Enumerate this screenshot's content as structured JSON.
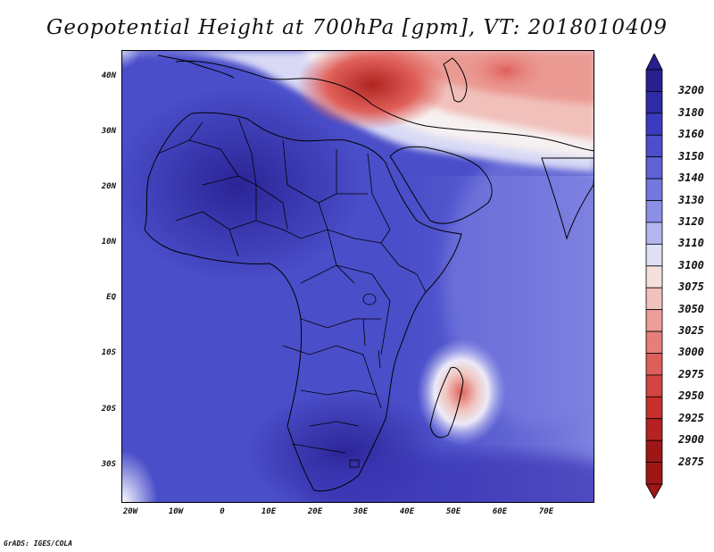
{
  "title": "Geopotential Height at 700hPa [gpm], VT: 2018010409",
  "credit": "GrADS: IGES/COLA",
  "map": {
    "lat_ticks": [
      "40N",
      "30N",
      "20N",
      "10N",
      "EQ",
      "10S",
      "20S",
      "30S"
    ],
    "lon_ticks": [
      "20W",
      "10W",
      "0",
      "10E",
      "20E",
      "30E",
      "40E",
      "50E",
      "60E",
      "70E"
    ],
    "lat_range": [
      -36,
      44
    ],
    "lon_range": [
      -22,
      80
    ]
  },
  "colorbar": {
    "levels": [
      "3200",
      "3180",
      "3160",
      "3150",
      "3140",
      "3130",
      "3120",
      "3110",
      "3100",
      "3075",
      "3050",
      "3025",
      "3000",
      "2975",
      "2950",
      "2925",
      "2900",
      "2875"
    ],
    "colors": [
      "#2a1f8f",
      "#2f2aa6",
      "#3a3cbf",
      "#4b4fcc",
      "#5f63d6",
      "#7478de",
      "#8b8fe6",
      "#b3b6ef",
      "#dfe0f7",
      "#f5e0dc",
      "#f1c2bc",
      "#ec9f98",
      "#e57f78",
      "#dd5f59",
      "#d44440",
      "#c8302e",
      "#b52222",
      "#9e1616"
    ]
  }
}
